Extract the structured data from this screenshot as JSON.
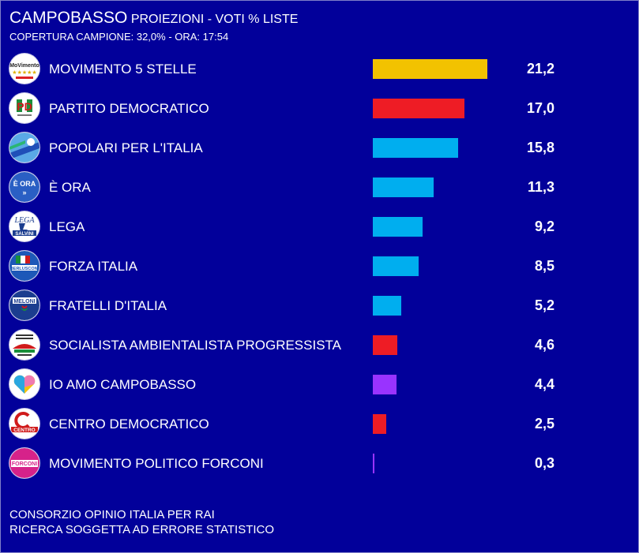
{
  "header": {
    "city": "CAMPOBASSO",
    "subtitle": "PROIEZIONI - VOTI % LISTE",
    "coverage": "COPERTURA CAMPIONE: 32,0%  - ORA: 17:54"
  },
  "footer": {
    "line1": "CONSORZIO OPINIO ITALIA PER RAI",
    "line2": "RICERCA SOGGETTA AD ERRORE STATISTICO"
  },
  "chart_data": {
    "type": "bar",
    "orientation": "horizontal",
    "title": "CAMPOBASSO PROIEZIONI - VOTI % LISTE",
    "xlim": [
      0,
      21.2
    ],
    "categories": [
      "MOVIMENTO 5 STELLE",
      "PARTITO DEMOCRATICO",
      "POPOLARI PER L'ITALIA",
      "È ORA",
      "LEGA",
      "FORZA ITALIA",
      "FRATELLI D'ITALIA",
      "SOCIALISTA AMBIENTALISTA PROGRESSISTA",
      "IO AMO CAMPOBASSO",
      "CENTRO DEMOCRATICO",
      "MOVIMENTO POLITICO FORCONI"
    ],
    "values": [
      21.2,
      17.0,
      15.8,
      11.3,
      9.2,
      8.5,
      5.2,
      4.6,
      4.4,
      2.5,
      0.3
    ],
    "labels": [
      "21,2",
      "17,0",
      "15,8",
      "11,3",
      "9,2",
      "8,5",
      "5,2",
      "4,6",
      "4,4",
      "2,5",
      "0,3"
    ],
    "colors": [
      "#f2c200",
      "#ee1c25",
      "#00aeef",
      "#00aeef",
      "#00aeef",
      "#00aeef",
      "#00aeef",
      "#ee1c25",
      "#9933ff",
      "#ee1c25",
      "#9933ff"
    ],
    "logos": [
      "m5s-logo",
      "pd-logo",
      "popolari-logo",
      "e-ora-logo",
      "lega-logo",
      "forza-italia-logo",
      "fratelli-italia-logo",
      "socialista-logo",
      "io-amo-logo",
      "centro-democratico-logo",
      "forconi-logo"
    ],
    "logo_text": {
      "m5s": "MoVimento",
      "pd": "PD",
      "e_ora": "È ORA",
      "lega": "LEGA",
      "salvini": "SALVINI",
      "berlusconi": "BERLUSCONI",
      "meloni": "MELONI",
      "centro": "CENTRO",
      "forconi": "FORCONI"
    }
  }
}
